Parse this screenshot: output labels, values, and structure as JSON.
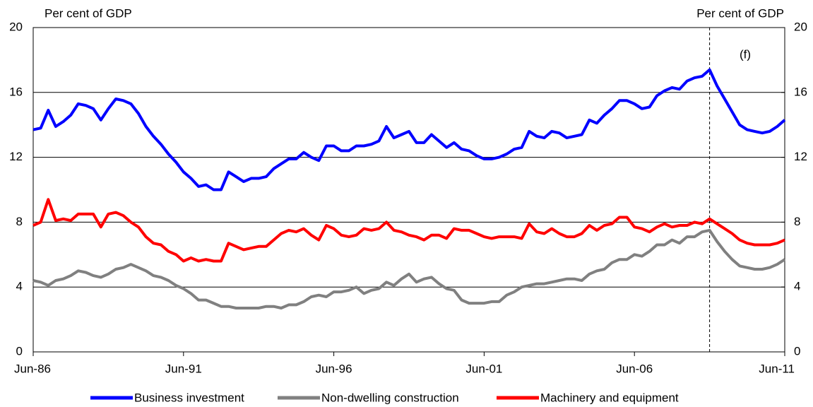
{
  "chart_data": {
    "type": "line",
    "ylabel": "Per cent of GDP",
    "y2label": "Per cent of GDP",
    "annotation": "(f)",
    "vline": {
      "x_index": 90,
      "style": "dashed"
    },
    "categories": [
      "Jun-86",
      null,
      null,
      null,
      null,
      null,
      null,
      null,
      null,
      null,
      null,
      null,
      null,
      null,
      null,
      null,
      null,
      null,
      null,
      null,
      "Jun-91",
      null,
      null,
      null,
      null,
      null,
      null,
      null,
      null,
      null,
      null,
      null,
      null,
      null,
      null,
      null,
      null,
      null,
      null,
      null,
      "Jun-96",
      null,
      null,
      null,
      null,
      null,
      null,
      null,
      null,
      null,
      null,
      null,
      null,
      null,
      null,
      null,
      null,
      null,
      null,
      null,
      "Jun-01",
      null,
      null,
      null,
      null,
      null,
      null,
      null,
      null,
      null,
      null,
      null,
      null,
      null,
      null,
      null,
      null,
      null,
      null,
      null,
      "Jun-06",
      null,
      null,
      null,
      null,
      null,
      null,
      null,
      null,
      null,
      null,
      null,
      null,
      null,
      null,
      null,
      null,
      null,
      null,
      null,
      "Jun-11"
    ],
    "series": [
      {
        "name": "Business investment",
        "color": "#0000ff",
        "values": [
          13.7,
          13.8,
          14.9,
          13.9,
          14.2,
          14.6,
          15.3,
          15.2,
          15.0,
          14.3,
          15.0,
          15.6,
          15.5,
          15.3,
          14.7,
          13.9,
          13.3,
          12.8,
          12.2,
          11.7,
          11.1,
          10.7,
          10.2,
          10.3,
          10.0,
          10.0,
          11.1,
          10.8,
          10.5,
          10.7,
          10.7,
          10.8,
          11.3,
          11.6,
          11.9,
          11.9,
          12.3,
          12.0,
          11.8,
          12.7,
          12.7,
          12.4,
          12.4,
          12.7,
          12.7,
          12.8,
          13.0,
          13.9,
          13.2,
          13.4,
          13.6,
          12.9,
          12.9,
          13.4,
          13.0,
          12.6,
          12.9,
          12.5,
          12.4,
          12.1,
          11.9,
          11.9,
          12.0,
          12.2,
          12.5,
          12.6,
          13.6,
          13.3,
          13.2,
          13.6,
          13.5,
          13.2,
          13.3,
          13.4,
          14.3,
          14.1,
          14.6,
          15.0,
          15.5,
          15.5,
          15.3,
          15.0,
          15.1,
          15.8,
          16.1,
          16.3,
          16.2,
          16.7,
          16.9,
          17.0,
          17.4,
          16.4,
          15.6,
          14.8,
          14.0,
          13.7,
          13.6,
          13.5,
          13.6,
          13.9,
          14.3
        ]
      },
      {
        "name": "Non-dwelling construction",
        "color": "#808080",
        "values": [
          4.4,
          4.3,
          4.1,
          4.4,
          4.5,
          4.7,
          5.0,
          4.9,
          4.7,
          4.6,
          4.8,
          5.1,
          5.2,
          5.4,
          5.2,
          5.0,
          4.7,
          4.6,
          4.4,
          4.1,
          3.9,
          3.6,
          3.2,
          3.2,
          3.0,
          2.8,
          2.8,
          2.7,
          2.7,
          2.7,
          2.7,
          2.8,
          2.8,
          2.7,
          2.9,
          2.9,
          3.1,
          3.4,
          3.5,
          3.4,
          3.7,
          3.7,
          3.8,
          4.0,
          3.6,
          3.8,
          3.9,
          4.3,
          4.1,
          4.5,
          4.8,
          4.3,
          4.5,
          4.6,
          4.2,
          3.9,
          3.8,
          3.2,
          3.0,
          3.0,
          3.0,
          3.1,
          3.1,
          3.5,
          3.7,
          4.0,
          4.1,
          4.2,
          4.2,
          4.3,
          4.4,
          4.5,
          4.5,
          4.4,
          4.8,
          5.0,
          5.1,
          5.5,
          5.7,
          5.7,
          6.0,
          5.9,
          6.2,
          6.6,
          6.6,
          6.9,
          6.7,
          7.1,
          7.1,
          7.4,
          7.5,
          6.8,
          6.2,
          5.7,
          5.3,
          5.2,
          5.1,
          5.1,
          5.2,
          5.4,
          5.7
        ]
      },
      {
        "name": "Machinery and equipment",
        "color": "#ff0000",
        "values": [
          7.8,
          8.0,
          9.4,
          8.1,
          8.2,
          8.1,
          8.5,
          8.5,
          8.5,
          7.7,
          8.5,
          8.6,
          8.4,
          8.0,
          7.7,
          7.1,
          6.7,
          6.6,
          6.2,
          6.0,
          5.6,
          5.8,
          5.6,
          5.7,
          5.6,
          5.6,
          6.7,
          6.5,
          6.3,
          6.4,
          6.5,
          6.5,
          6.9,
          7.3,
          7.5,
          7.4,
          7.6,
          7.2,
          6.9,
          7.8,
          7.6,
          7.2,
          7.1,
          7.2,
          7.6,
          7.5,
          7.6,
          8.0,
          7.5,
          7.4,
          7.2,
          7.1,
          6.9,
          7.2,
          7.2,
          7.0,
          7.6,
          7.5,
          7.5,
          7.3,
          7.1,
          7.0,
          7.1,
          7.1,
          7.1,
          7.0,
          7.9,
          7.4,
          7.3,
          7.6,
          7.3,
          7.1,
          7.1,
          7.3,
          7.8,
          7.5,
          7.8,
          7.9,
          8.3,
          8.3,
          7.7,
          7.6,
          7.4,
          7.7,
          7.9,
          7.7,
          7.8,
          7.8,
          8.0,
          7.9,
          8.2,
          7.9,
          7.6,
          7.3,
          6.9,
          6.7,
          6.6,
          6.6,
          6.6,
          6.7,
          6.9
        ]
      }
    ],
    "ylim": [
      0,
      20
    ],
    "yticks": [
      0,
      4,
      8,
      12,
      16,
      20
    ],
    "y2lim": [
      0,
      20
    ],
    "y2ticks": [
      0,
      4,
      8,
      12,
      16,
      20
    ],
    "grid": true,
    "legend": "bottom"
  }
}
